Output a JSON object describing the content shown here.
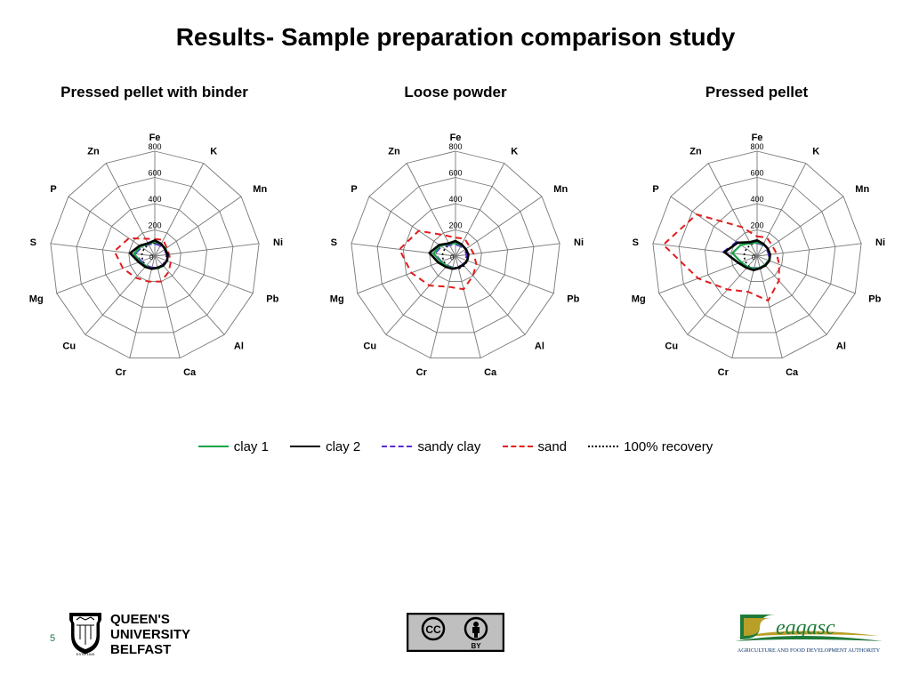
{
  "title": "Results- Sample preparation comparison study",
  "page_number": "5",
  "axes": [
    "Fe",
    "K",
    "Mn",
    "Ni",
    "Pb",
    "Al",
    "Ca",
    "Cr",
    "Cu",
    "Mg",
    "S",
    "P",
    "Zn"
  ],
  "ticks": [
    200,
    400,
    600,
    800
  ],
  "max_value": 800,
  "grid_color": "#777777",
  "axis_label_fontsize": 11,
  "tick_label_fontsize": 9,
  "chart_title_fontsize": 17,
  "series_styles": {
    "clay1": {
      "color": "#16a34a",
      "width": 2.2,
      "dash": ""
    },
    "clay2": {
      "color": "#000000",
      "width": 2.6,
      "dash": ""
    },
    "sandy_clay": {
      "color": "#5b2bd6",
      "width": 2.0,
      "dash": "8,6"
    },
    "sand": {
      "color": "#e11d1d",
      "width": 2.0,
      "dash": "7,5"
    },
    "recovery": {
      "color": "#000000",
      "width": 1.6,
      "dash": "2,3"
    }
  },
  "recovery_value": 100,
  "charts": [
    {
      "title": "Pressed pellet with binder",
      "series": {
        "clay1": [
          110,
          100,
          100,
          100,
          100,
          100,
          95,
          100,
          100,
          120,
          160,
          130,
          105
        ],
        "clay2": [
          120,
          105,
          95,
          100,
          100,
          95,
          90,
          100,
          110,
          130,
          190,
          140,
          110
        ],
        "sandy_clay": [
          95,
          90,
          90,
          90,
          90,
          90,
          90,
          90,
          95,
          110,
          150,
          120,
          100
        ],
        "sand": [
          130,
          140,
          110,
          110,
          130,
          160,
          200,
          200,
          220,
          260,
          310,
          240,
          150
        ]
      }
    },
    {
      "title": "Loose powder",
      "series": {
        "clay1": [
          100,
          95,
          95,
          100,
          95,
          90,
          90,
          95,
          100,
          120,
          170,
          140,
          105
        ],
        "clay2": [
          115,
          100,
          95,
          100,
          95,
          90,
          90,
          100,
          110,
          140,
          200,
          150,
          110
        ],
        "sandy_clay": [
          90,
          85,
          85,
          85,
          85,
          85,
          85,
          90,
          95,
          115,
          160,
          130,
          95
        ],
        "sand": [
          140,
          150,
          130,
          140,
          170,
          200,
          260,
          240,
          300,
          360,
          430,
          340,
          180
        ]
      }
    },
    {
      "title": "Pressed pellet",
      "series": {
        "clay1": [
          105,
          100,
          100,
          100,
          95,
          90,
          90,
          100,
          110,
          130,
          190,
          150,
          110
        ],
        "clay2": [
          120,
          105,
          100,
          100,
          100,
          95,
          95,
          110,
          120,
          150,
          250,
          180,
          120
        ],
        "sandy_clay": [
          100,
          95,
          90,
          90,
          90,
          90,
          90,
          95,
          110,
          150,
          260,
          190,
          105
        ],
        "sand": [
          150,
          160,
          140,
          150,
          180,
          250,
          350,
          280,
          340,
          480,
          720,
          560,
          250
        ]
      }
    }
  ],
  "legend": {
    "clay1": "clay 1",
    "clay2": "clay 2",
    "sandy_clay": "sandy clay",
    "sand": "sand",
    "recovery": "100% recovery"
  },
  "logos": {
    "qub_line1": "QUEEN'S",
    "qub_line2": "UNIVERSITY",
    "qub_line3": "BELFAST",
    "cc_text": "CC",
    "cc_by": "BY",
    "teagasc": "eagasc",
    "teagasc_sub": "AGRICULTURE AND FOOD DEVELOPMENT AUTHORITY"
  }
}
